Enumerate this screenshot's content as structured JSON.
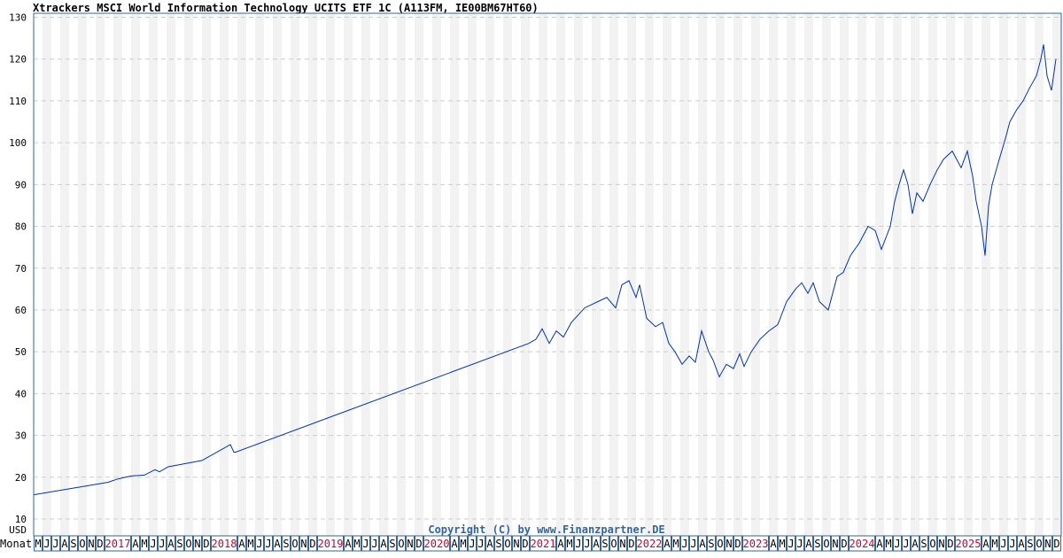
{
  "chart_data": {
    "type": "line",
    "title": "Xtrackers MSCI World Information Technology UCITS ETF 1C (A113FM, IE00BM67HT60)",
    "ylabel": "USD",
    "xlabel": "Monat",
    "ylim": [
      10,
      130
    ],
    "yticks": [
      10,
      20,
      30,
      40,
      50,
      60,
      70,
      80,
      90,
      100,
      110,
      120,
      130
    ],
    "grid": true,
    "x_start": "2016-05",
    "x_months": 116,
    "month_letters": [
      "J",
      "F",
      "M",
      "A",
      "M",
      "J",
      "J",
      "A",
      "S",
      "O",
      "N",
      "D"
    ],
    "copyright": "Copyright (C) by www.Finanzpartner.DE",
    "colors": {
      "line": "#0033aa",
      "axis": "#336699",
      "year": "#cc0033",
      "band": "#f2f2f2",
      "grid": "#cccccc",
      "copyright": "#336699"
    },
    "series": [
      {
        "name": "Xtrackers MSCI World Information Technology UCITS ETF 1C",
        "points": [
          [
            0,
            15.8
          ],
          [
            8.4,
            18.8
          ],
          [
            9.5,
            19.6
          ],
          [
            11,
            20.3
          ],
          [
            12.5,
            20.5
          ],
          [
            13.7,
            21.8
          ],
          [
            14.2,
            21.3
          ],
          [
            15.2,
            22.5
          ],
          [
            19,
            24
          ],
          [
            22.2,
            27.8
          ],
          [
            22.6,
            26
          ],
          [
            22.8,
            26
          ],
          [
            55.9,
            52
          ],
          [
            56.7,
            53
          ],
          [
            57.4,
            55.5
          ],
          [
            58.2,
            52
          ],
          [
            59,
            55
          ],
          [
            59.8,
            53.5
          ],
          [
            60.7,
            57
          ],
          [
            62.2,
            60.5
          ],
          [
            63.7,
            62
          ],
          [
            64.7,
            63
          ],
          [
            65.7,
            60.5
          ],
          [
            66.4,
            66
          ],
          [
            67.2,
            67
          ],
          [
            68,
            63
          ],
          [
            68.4,
            66
          ],
          [
            69.2,
            58
          ],
          [
            70.2,
            56
          ],
          [
            71,
            57
          ],
          [
            71.7,
            52
          ],
          [
            72.4,
            50
          ],
          [
            73.2,
            47
          ],
          [
            74,
            49
          ],
          [
            74.7,
            47.5
          ],
          [
            75.4,
            55
          ],
          [
            76.2,
            50
          ],
          [
            76.7,
            48
          ],
          [
            77.4,
            44
          ],
          [
            78.2,
            47
          ],
          [
            79,
            46
          ],
          [
            79.7,
            49.5
          ],
          [
            80.2,
            46.5
          ],
          [
            81,
            50
          ],
          [
            82,
            53
          ],
          [
            83,
            55
          ],
          [
            84,
            56.5
          ],
          [
            85,
            62
          ],
          [
            86,
            65
          ],
          [
            86.7,
            66.5
          ],
          [
            87.4,
            64
          ],
          [
            88,
            66.5
          ],
          [
            88.7,
            62
          ],
          [
            89.7,
            60
          ],
          [
            90.7,
            68
          ],
          [
            91.4,
            69
          ],
          [
            92.2,
            73
          ],
          [
            93.2,
            76
          ],
          [
            94.2,
            80
          ],
          [
            95,
            79
          ],
          [
            95.7,
            74.5
          ],
          [
            96.7,
            80
          ],
          [
            97.2,
            86
          ],
          [
            97.7,
            90
          ],
          [
            98.2,
            93.5
          ],
          [
            98.7,
            90
          ],
          [
            99.2,
            83
          ],
          [
            99.7,
            88
          ],
          [
            100.4,
            86
          ],
          [
            101.2,
            90
          ],
          [
            102,
            93.5
          ],
          [
            102.7,
            96
          ],
          [
            103.2,
            97
          ],
          [
            103.7,
            98
          ],
          [
            104.2,
            96
          ],
          [
            104.7,
            94
          ],
          [
            105.4,
            98
          ],
          [
            106,
            92
          ],
          [
            106.4,
            86
          ],
          [
            107,
            80
          ],
          [
            107.4,
            73
          ],
          [
            107.8,
            85
          ],
          [
            108.2,
            90
          ],
          [
            109,
            96
          ],
          [
            109.7,
            101
          ],
          [
            110.2,
            105
          ],
          [
            111,
            108
          ],
          [
            111.7,
            110
          ],
          [
            112.4,
            113
          ],
          [
            113.2,
            116
          ],
          [
            113.7,
            120
          ],
          [
            114,
            123.5
          ],
          [
            114.4,
            116
          ],
          [
            114.9,
            112.5
          ],
          [
            115.4,
            120
          ]
        ]
      }
    ]
  }
}
